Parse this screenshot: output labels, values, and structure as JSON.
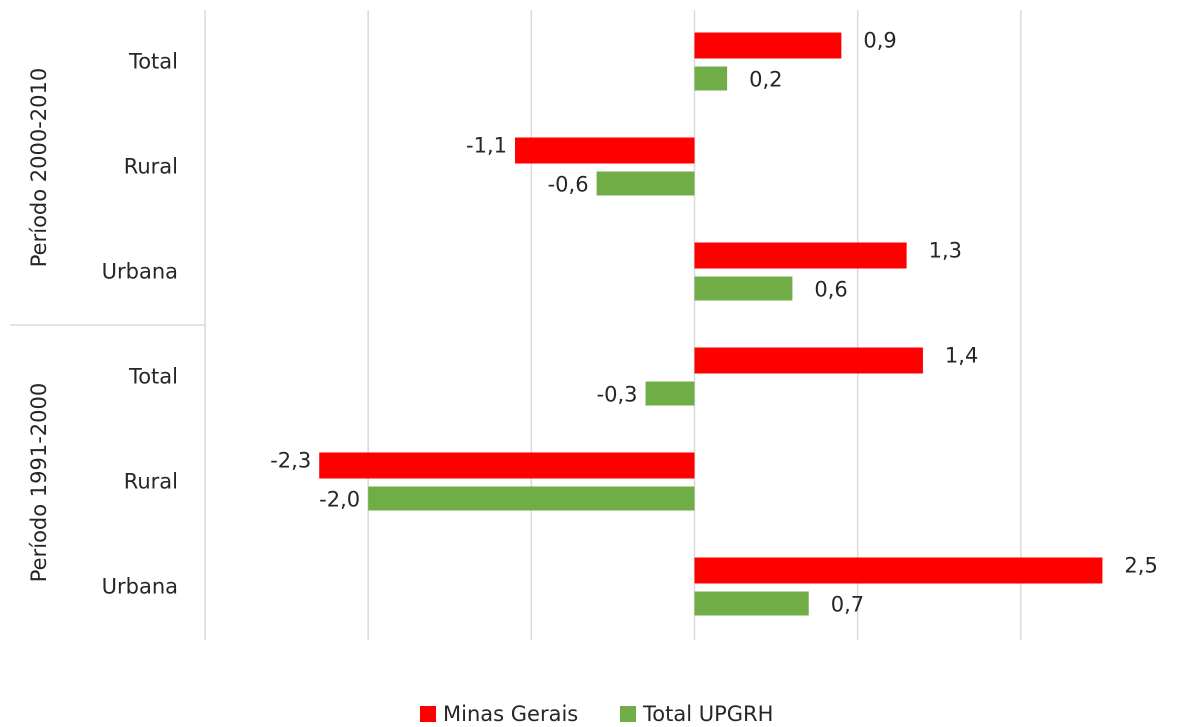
{
  "chart_data": {
    "type": "bar",
    "orientation": "horizontal",
    "groups": [
      {
        "label": "Período 2000-2010",
        "categories": [
          "Total",
          "Rural",
          "Urbana"
        ]
      },
      {
        "label": "Período 1991-2000",
        "categories": [
          "Total",
          "Rural",
          "Urbana"
        ]
      }
    ],
    "series": [
      {
        "name": "Minas Gerais",
        "color": "#ff0000",
        "values": [
          0.9,
          -1.1,
          1.3,
          1.4,
          -2.3,
          2.5
        ],
        "value_labels": [
          "0,9",
          "-1,1",
          "1,3",
          "1,4",
          "-2,3",
          "2,5"
        ]
      },
      {
        "name": "Total UPGRH",
        "color": "#70ad47",
        "values": [
          0.2,
          -0.6,
          0.6,
          -0.3,
          -2.0,
          0.7
        ],
        "value_labels": [
          "0,2",
          "-0,6",
          "0,6",
          "-0,3",
          "-2,0",
          "0,7"
        ]
      }
    ],
    "xlim": [
      -3,
      3
    ],
    "xticks": [
      -2,
      -1,
      0,
      1,
      2
    ],
    "grid": true,
    "legend": "bottom"
  }
}
